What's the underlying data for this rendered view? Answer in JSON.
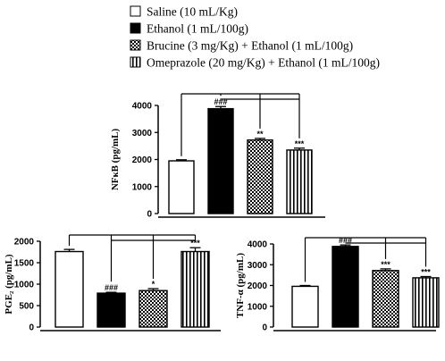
{
  "legend": [
    {
      "label": "Saline  (10 mL/Kg)",
      "fill": "white"
    },
    {
      "label": "Ethanol (1 mL/100g)",
      "fill": "black"
    },
    {
      "label": "Brucine (3 mg/Kg) + Ethanol (1 mL/100g)",
      "fill": "checker"
    },
    {
      "label": "Omeprazole (20 mg/Kg) + Ethanol (1 mL/100g)",
      "fill": "vstripes"
    }
  ],
  "chart_data": [
    {
      "type": "bar",
      "ylabel": "NFκB (pg/mL)",
      "ylim": [
        0,
        4000
      ],
      "yticks": [
        0,
        1000,
        2000,
        3000,
        4000
      ],
      "categories": [
        "Saline",
        "Ethanol",
        "Brucine + Ethanol",
        "Omeprazole + Ethanol"
      ],
      "values": [
        1950,
        3880,
        2720,
        2350
      ],
      "errors": [
        40,
        80,
        60,
        70
      ],
      "significance": [
        "",
        "###",
        "**",
        "***"
      ],
      "comparison_brackets": true
    },
    {
      "type": "bar",
      "ylabel": "PGE₂ (pg/mL)",
      "ylim": [
        0,
        2000
      ],
      "yticks": [
        0,
        500,
        1000,
        1500,
        2000
      ],
      "categories": [
        "Saline",
        "Ethanol",
        "Brucine + Ethanol",
        "Omeprazole + Ethanol"
      ],
      "values": [
        1760,
        790,
        850,
        1760
      ],
      "errors": [
        50,
        20,
        45,
        90
      ],
      "significance": [
        "",
        "###",
        "*",
        "***"
      ],
      "comparison_brackets": true
    },
    {
      "type": "bar",
      "ylabel": "TNF-α (pg/mL)",
      "ylim": [
        0,
        4000
      ],
      "yticks": [
        0,
        1000,
        2000,
        3000,
        4000
      ],
      "categories": [
        "Saline",
        "Ethanol",
        "Brucine + Ethanol",
        "Omeprazole + Ethanol"
      ],
      "values": [
        1960,
        3880,
        2720,
        2370
      ],
      "errors": [
        40,
        70,
        80,
        60
      ],
      "significance": [
        "",
        "###",
        "***",
        "***"
      ],
      "comparison_brackets": true
    }
  ]
}
